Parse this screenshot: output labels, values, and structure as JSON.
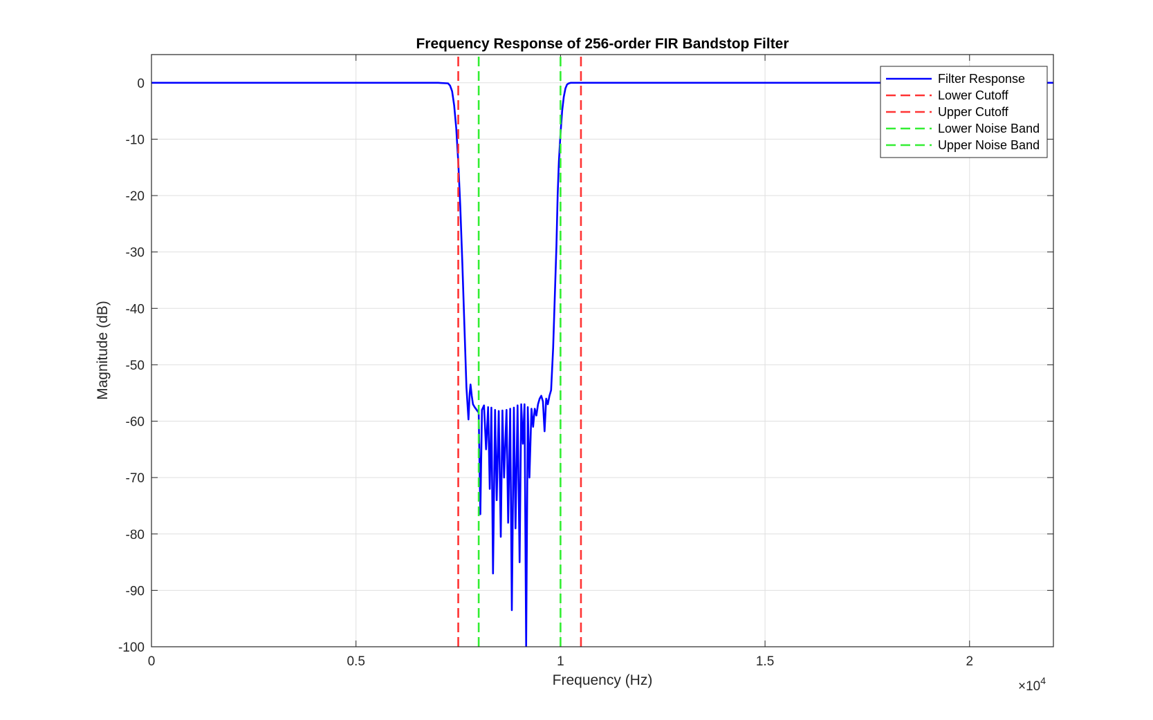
{
  "chart_data": {
    "type": "line",
    "title": "Frequency Response of 256-order FIR Bandstop Filter",
    "xlabel": "Frequency (Hz)",
    "ylabel": "Magnitude (dB)",
    "xlim": [
      0,
      22050
    ],
    "ylim": [
      -100,
      5
    ],
    "x_exponent_label": "×10",
    "x_exponent_power": "4",
    "x_ticks": [
      0,
      5000,
      10000,
      15000,
      20000
    ],
    "x_tick_labels": [
      "0",
      "0.5",
      "1",
      "1.5",
      "2"
    ],
    "y_ticks": [
      0,
      -10,
      -20,
      -30,
      -40,
      -50,
      -60,
      -70,
      -80,
      -90,
      -100
    ],
    "y_tick_labels": [
      "0",
      "-10",
      "-20",
      "-30",
      "-40",
      "-50",
      "-60",
      "-70",
      "-80",
      "-90",
      "-100"
    ],
    "grid": true,
    "legend_position": "top-right",
    "series": [
      {
        "name": "Filter Response",
        "color": "#0000ff",
        "style": "solid",
        "x": [
          0,
          7000,
          7250,
          7300,
          7350,
          7400,
          7450,
          7500,
          7550,
          7600,
          7650,
          7700,
          7750,
          7780,
          7800,
          7830,
          7860,
          7900,
          7950,
          8000,
          8040,
          8080,
          8130,
          8180,
          8230,
          8270,
          8310,
          8350,
          8400,
          8440,
          8490,
          8540,
          8580,
          8620,
          8680,
          8720,
          8770,
          8810,
          8860,
          8900,
          8950,
          9000,
          9040,
          9080,
          9120,
          9160,
          9200,
          9240,
          9290,
          9330,
          9370,
          9410,
          9450,
          9490,
          9530,
          9570,
          9610,
          9650,
          9690,
          9730,
          9770,
          9820,
          9860,
          9900,
          9930,
          9960,
          10000,
          10040,
          10080,
          10120,
          10160,
          10200,
          10250,
          10300,
          10350,
          10400,
          10450,
          10500,
          10550,
          10600,
          10650,
          10700,
          10750,
          10800,
          11000,
          22050
        ],
        "y": [
          0,
          0,
          -0.1,
          -0.5,
          -1.5,
          -4,
          -8,
          -14,
          -22,
          -32,
          -43,
          -54,
          -59.7,
          -55,
          -53.5,
          -55.5,
          -57,
          -57.5,
          -58,
          -58.5,
          -76.5,
          -58,
          -57.2,
          -65,
          -57.5,
          -72,
          -57.6,
          -87,
          -58,
          -74,
          -58.2,
          -80.5,
          -58.1,
          -70,
          -58,
          -78,
          -57.8,
          -93.5,
          -57.6,
          -79,
          -57.2,
          -85,
          -57,
          -64,
          -57,
          -100,
          -57.5,
          -70,
          -57.8,
          -61,
          -57.8,
          -59,
          -57,
          -56,
          -55.5,
          -56.5,
          -61.8,
          -56,
          -57,
          -55.5,
          -54.5,
          -47,
          -38,
          -29,
          -20,
          -14,
          -9,
          -5,
          -2.5,
          -1,
          -0.3,
          -0.1,
          0,
          0,
          0,
          0,
          0,
          0,
          0,
          0,
          0,
          0,
          0,
          0,
          0,
          0
        ]
      },
      {
        "name": "Lower Cutoff",
        "color": "#ff3333",
        "style": "dashed",
        "x": [
          7500,
          7500
        ],
        "y": [
          -100,
          5
        ]
      },
      {
        "name": "Upper Cutoff",
        "color": "#ff3333",
        "style": "dashed",
        "x": [
          10500,
          10500
        ],
        "y": [
          -100,
          5
        ]
      },
      {
        "name": "Lower Noise Band",
        "color": "#33ee33",
        "style": "dashed",
        "x": [
          8000,
          8000
        ],
        "y": [
          -100,
          5
        ]
      },
      {
        "name": "Upper Noise Band",
        "color": "#33ee33",
        "style": "dashed",
        "x": [
          10000,
          10000
        ],
        "y": [
          -100,
          5
        ]
      }
    ]
  }
}
